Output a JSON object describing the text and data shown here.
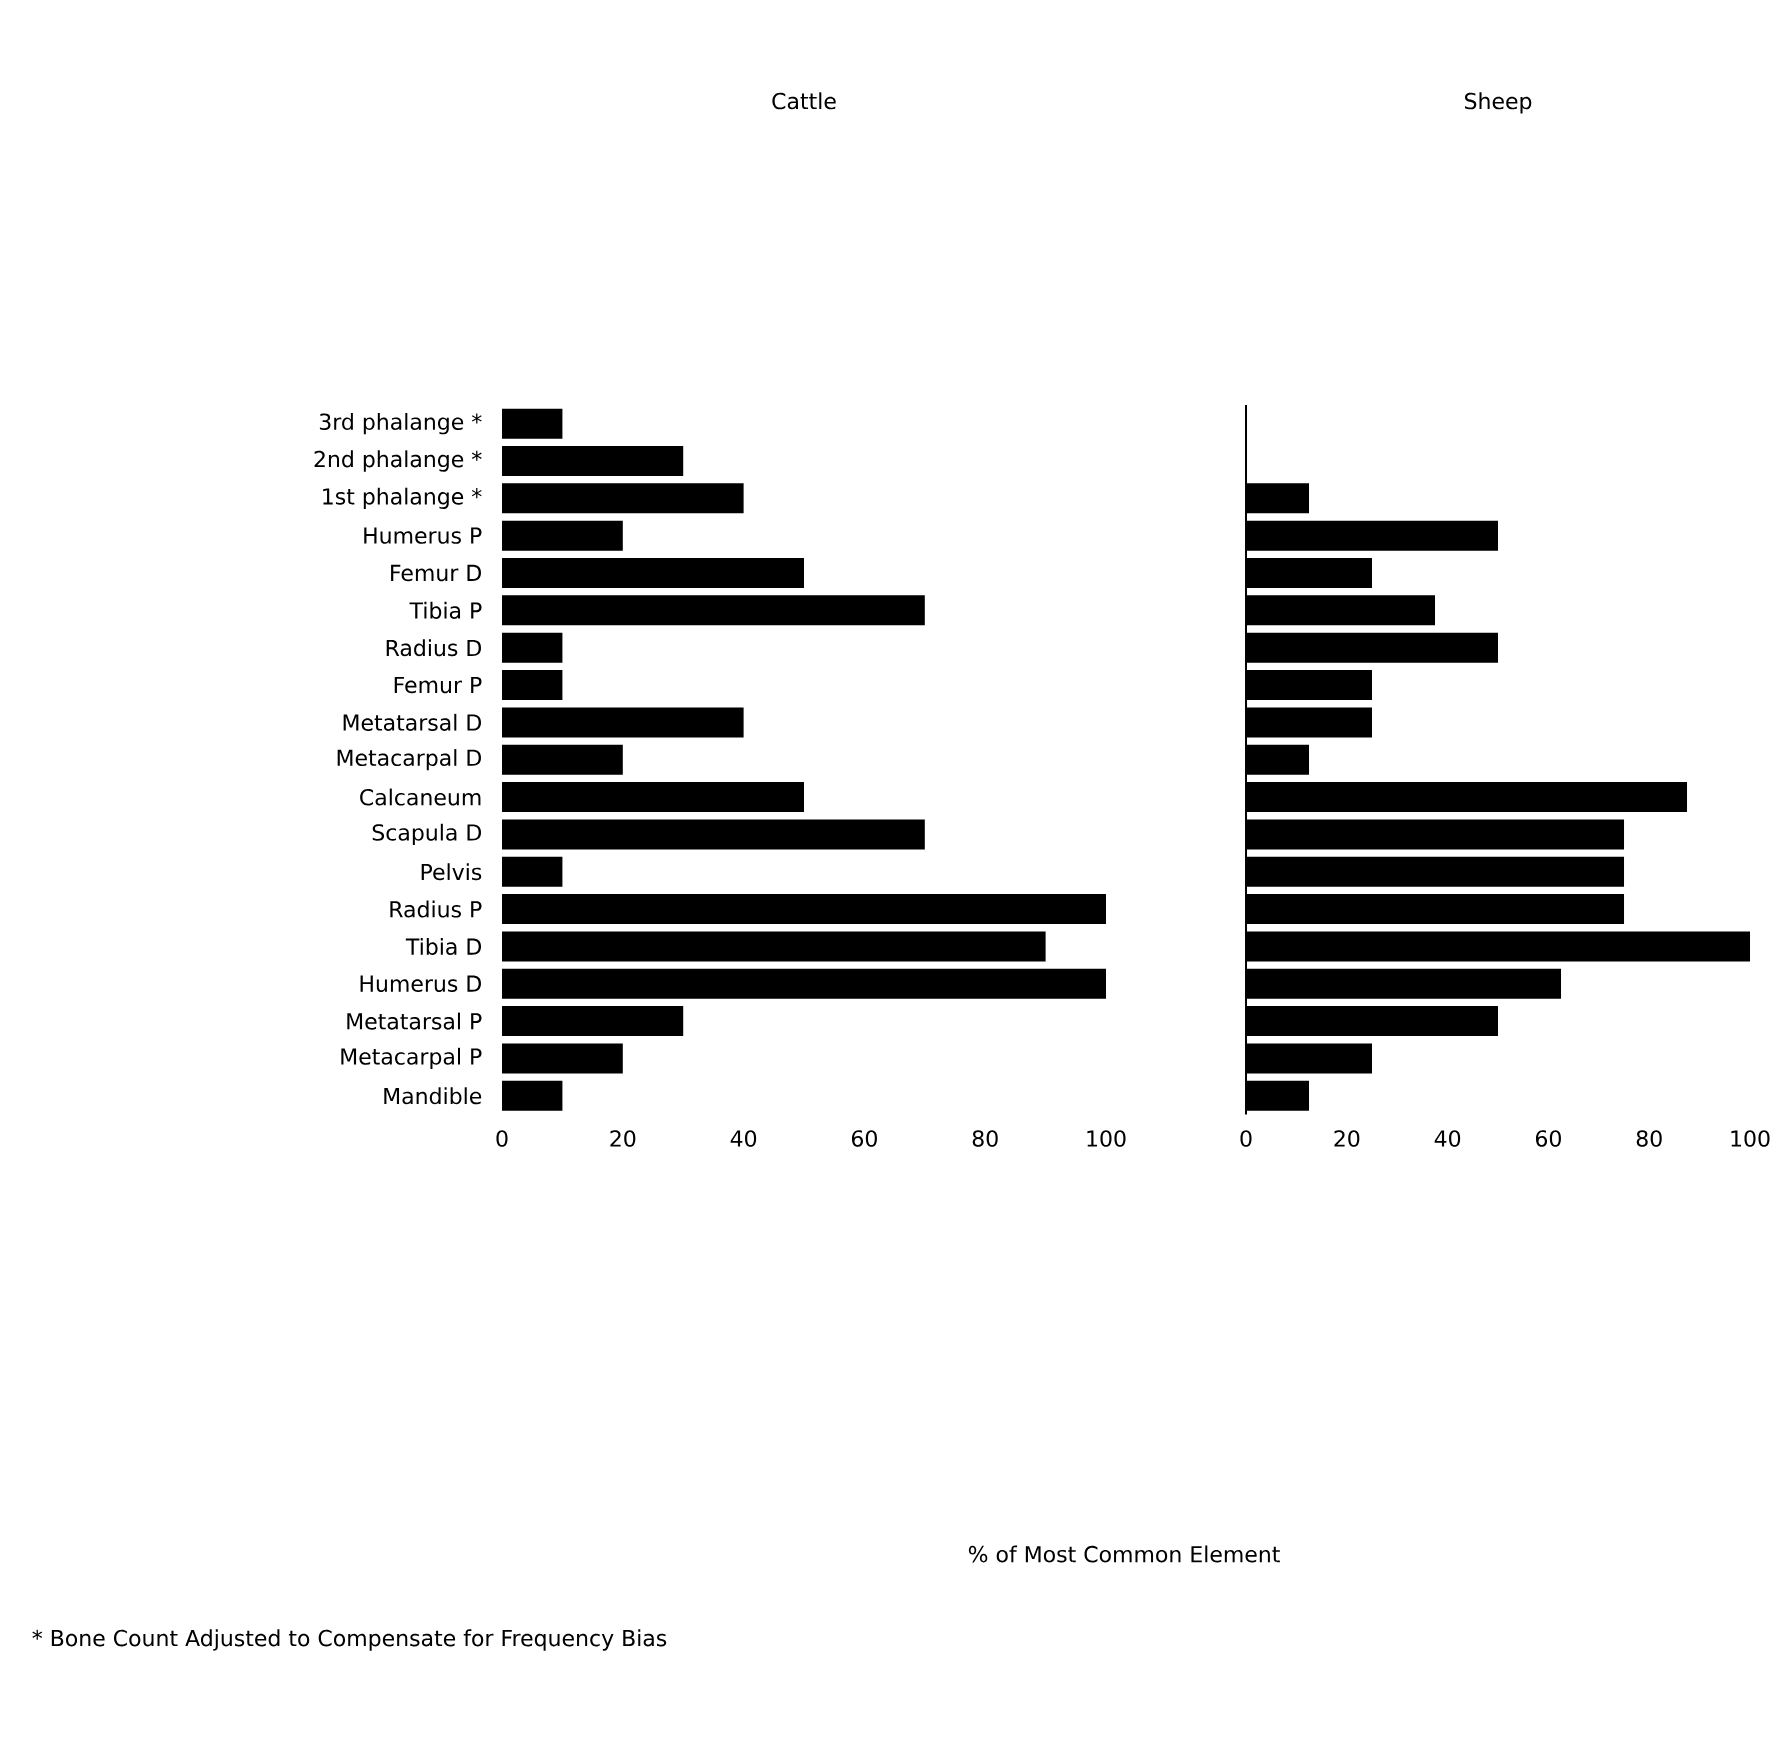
{
  "chart_data": [
    {
      "type": "bar",
      "orientation": "horizontal",
      "title": "Cattle",
      "xlabel": "% of Most Common Element",
      "categories": [
        "3rd phalange *",
        "2nd phalange *",
        "1st phalange *",
        "Humerus P",
        "Femur D",
        "Tibia P",
        "Radius D",
        "Femur P",
        "Metatarsal D",
        "Metacarpal D",
        "Calcaneum",
        "Scapula D",
        "Pelvis",
        "Radius P",
        "Tibia D",
        "Humerus D",
        "Metatarsal P",
        "Metacarpal P",
        "Mandible"
      ],
      "values": [
        10,
        30,
        40,
        20,
        50,
        70,
        10,
        10,
        40,
        20,
        50,
        70,
        10,
        100,
        90,
        100,
        30,
        20,
        10
      ],
      "color": "#000000",
      "xlim": [
        0,
        100
      ],
      "xticks": [
        0,
        20,
        40,
        60,
        80,
        100
      ],
      "annotations": [
        "* Bone Count Adjusted to Compensate for Frequency Bias"
      ]
    },
    {
      "type": "bar",
      "orientation": "horizontal",
      "title": "Sheep",
      "categories": [
        null,
        null,
        null,
        null,
        null,
        null,
        null,
        null,
        null,
        null,
        null,
        null,
        null,
        null,
        null,
        null,
        null,
        null,
        null
      ],
      "values": [
        null,
        null,
        12.5,
        50,
        25,
        37.5,
        50,
        25,
        25,
        12.5,
        87.5,
        75,
        75,
        75,
        100,
        62.5,
        50,
        25,
        12.5
      ],
      "color": "#000000",
      "xlim": [
        0,
        100
      ],
      "xticks": [
        0,
        20,
        40,
        60,
        80,
        100
      ]
    }
  ]
}
